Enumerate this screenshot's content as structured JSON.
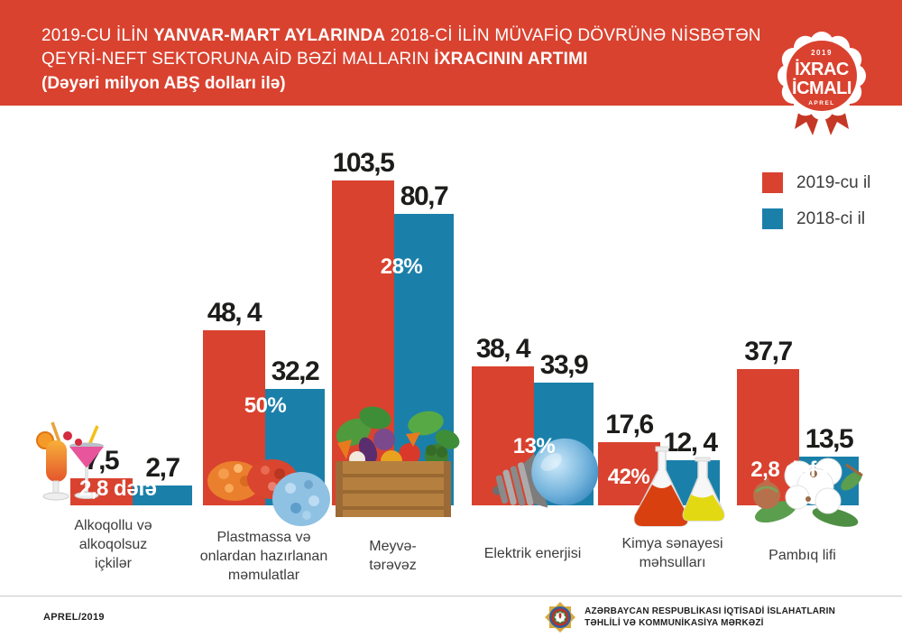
{
  "colors": {
    "red": "#d9422f",
    "blue": "#1a80aa",
    "ribbon": "#c53826",
    "text_dark": "#1c1c1a",
    "label_gray": "#3c3c3c"
  },
  "header": {
    "l1_a": "2019-CU İLİN ",
    "l1_b": "YANVAR-MART AYLARINDA",
    "l1_c": " 2018-Cİ İLİN MÜVAFİQ DÖVRÜNƏ NİSBƏTƏN",
    "l2_a": "QEYRİ-NEFT SEKTORUNA AİD BƏZİ MALLARIN ",
    "l2_b": "İXRACININ ARTIMI",
    "l3": "(Dəyəri milyon ABŞ dolları ilə)"
  },
  "badge": {
    "year": "2019",
    "title_line1": "İXRAC",
    "title_line2": "İCMALI",
    "month": "APREL"
  },
  "legend": {
    "items": [
      {
        "label": "2019-cu il"
      },
      {
        "label": "2018-ci il"
      }
    ]
  },
  "chart_data": {
    "type": "bar",
    "title": "2019-cu ilin yanvar-mart aylarında 2018-ci ilin müvafiq dövrünə nisbətən qeyri-neft sektoruna aid bəzi malların ixracının artımı",
    "unit": "milyon ABŞ dolları ilə",
    "legend_position": "top-right",
    "series_names": [
      "2019-cu il",
      "2018-ci il"
    ],
    "groups": [
      {
        "category": "Alkoqollu və alkoqolsuz içkilər",
        "category_lines": [
          "Alkoqollu və",
          "alkoqolsuz",
          "içkilər"
        ],
        "values": {
          "y2019": 7.5,
          "y2018": 2.7
        },
        "labels": {
          "y2019": "7,5",
          "y2018": "2,7"
        },
        "growth": "2,8 dəfə",
        "icon": "cocktails-icon"
      },
      {
        "category": "Plastmassa və onlardan hazırlanan məmulatlar",
        "category_lines": [
          "Plastmassa və",
          "onlardan hazırlanan",
          "məmulatlar"
        ],
        "values": {
          "y2019": 48.4,
          "y2018": 32.2
        },
        "labels": {
          "y2019": "48, 4",
          "y2018": "32,2"
        },
        "growth": "50%",
        "icon": "plastic-granules-icon"
      },
      {
        "category": "Meyvə-tərəvəz",
        "category_lines": [
          "Meyvə-",
          "tərəvəz"
        ],
        "values": {
          "y2019": 103.5,
          "y2018": 80.7
        },
        "labels": {
          "y2019": "103,5",
          "y2018": "80,7"
        },
        "growth": "28%",
        "icon": "vegetables-icon"
      },
      {
        "category": "Elektrik enerjisi",
        "category_lines": [
          "Elektrik enerjisi"
        ],
        "values": {
          "y2019": 38.4,
          "y2018": 33.9
        },
        "labels": {
          "y2019": "38, 4",
          "y2018": "33,9"
        },
        "growth": "13%",
        "icon": "light-bulb-icon"
      },
      {
        "category": "Kimya sənayesi məhsulları",
        "category_lines": [
          "Kimya sənayesi",
          "məhsulları"
        ],
        "values": {
          "y2019": 17.6,
          "y2018": 12.4
        },
        "labels": {
          "y2019": "17,6",
          "y2018": "12, 4"
        },
        "growth": "42%",
        "icon": "chemistry-flasks-icon"
      },
      {
        "category": "Pambıq lifi",
        "category_lines": [
          "Pambıq lifi"
        ],
        "values": {
          "y2019": 37.7,
          "y2018": 13.5
        },
        "labels": {
          "y2019": "37,7",
          "y2018": "13,5"
        },
        "growth": "2,8 dəfə",
        "icon": "cotton-icon"
      }
    ]
  },
  "footer": {
    "date": "APREL/2019",
    "org_line1": "AZƏRBAYCAN RESPUBLİKASI İQTİSADİ İSLAHATLARIN",
    "org_line2": "TƏHLİLİ VƏ KOMMUNİKASİYA MƏRKƏZİ"
  }
}
